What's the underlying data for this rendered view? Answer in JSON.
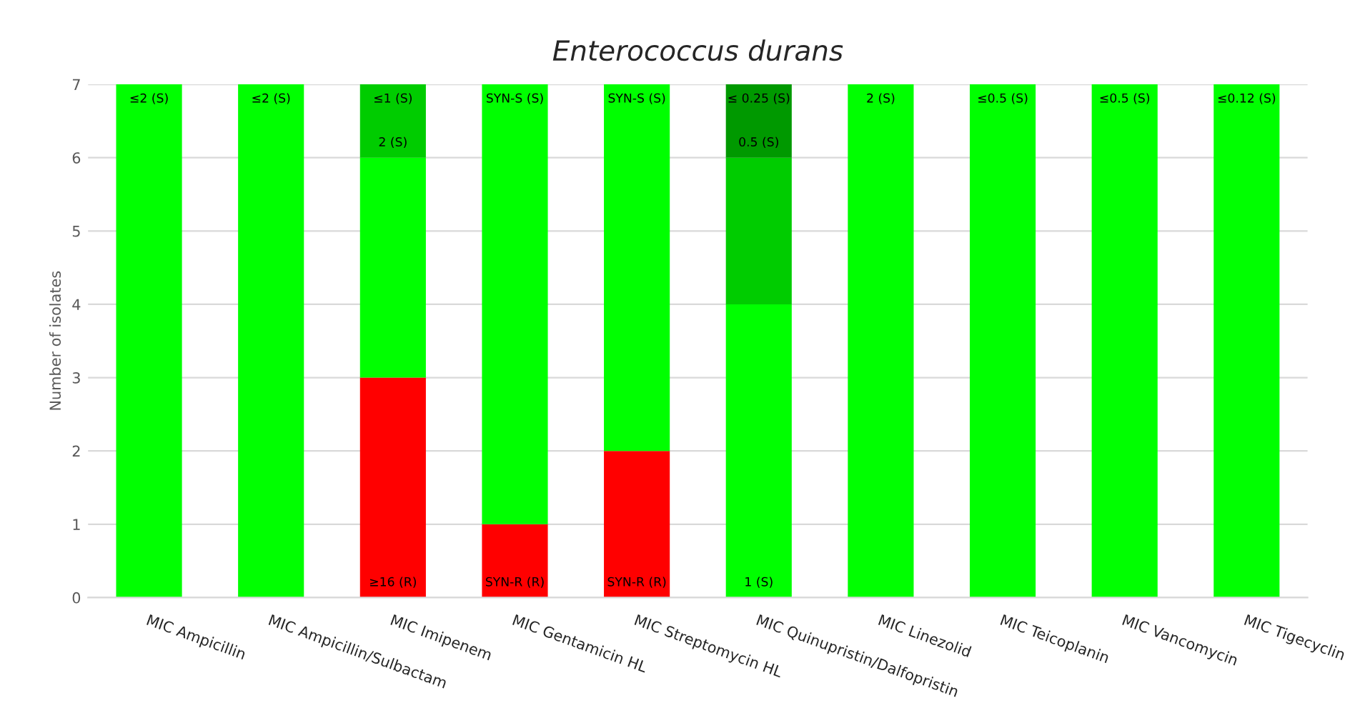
{
  "chart_data": {
    "type": "bar",
    "title": "Enterococcus durans",
    "ylabel": "Number of isolates",
    "stacked": true,
    "categories": [
      "MIC Ampicillin",
      "MIC Ampicillin/Sulbactam",
      "MIC Imipenem",
      "MIC Gentamicin HL",
      "MIC Streptomycin HL",
      "MIC Quinupristin/Dalfopristin",
      "MIC Linezolid",
      "MIC Teicoplanin",
      "MIC Vancomycin",
      "MIC Tigecyclin"
    ],
    "series": [
      {
        "values": [
          null,
          null,
          3,
          1,
          2,
          4,
          null,
          null,
          null,
          null
        ],
        "colors": [
          "#00ff00",
          "#00ff00",
          "#ff0000",
          "#ff0000",
          "#ff0000",
          "#00ff00",
          "#00ff00",
          "#00ff00",
          "#00ff00",
          "#00ff00"
        ]
      },
      {
        "values": [
          null,
          null,
          3,
          null,
          null,
          2,
          null,
          null,
          null,
          null
        ],
        "colors": [
          "#00ff00",
          "#00ff00",
          "#00ff00",
          "#00ff00",
          "#00ff00",
          "#00cc00",
          "#00ff00",
          "#00ff00",
          "#00ff00",
          "#00ff00"
        ]
      },
      {
        "values": [
          7,
          7,
          1,
          6,
          5,
          1,
          7,
          7,
          7,
          7
        ],
        "colors": [
          "#00ff00",
          "#00ff00",
          "#00cc00",
          "#00ff00",
          "#00ff00",
          "#009900",
          "#00ff00",
          "#00ff00",
          "#00ff00",
          "#00ff00"
        ]
      }
    ],
    "annotations": [
      {
        "text": "≤2 (S)",
        "x": "MIC Ampicillin",
        "y": 7
      },
      {
        "text": "≤2 (S)",
        "x": "MIC Ampicillin/Sulbactam",
        "y": 7
      },
      {
        "text": "≤1 (S)",
        "x": "MIC Imipenem",
        "y": 7
      },
      {
        "text": "2 (S)",
        "x": "MIC Imipenem",
        "y": 6
      },
      {
        "text": "≥16 (R)",
        "x": "MIC Imipenem",
        "y": 0
      },
      {
        "text": "SYN-S (S)",
        "x": "MIC Gentamicin HL",
        "y": 7
      },
      {
        "text": "SYN-R (R)",
        "x": "MIC Gentamicin HL",
        "y": 0
      },
      {
        "text": "SYN-S (S)",
        "x": "MIC Streptomycin HL",
        "y": 7
      },
      {
        "text": "SYN-R (R)",
        "x": "MIC Streptomycin HL",
        "y": 0
      },
      {
        "text": "≤ 0.25 (S)",
        "x": "MIC Quinupristin/Dalfopristin",
        "y": 7
      },
      {
        "text": "0.5 (S)",
        "x": "MIC Quinupristin/Dalfopristin",
        "y": 6
      },
      {
        "text": "1 (S)",
        "x": "MIC Quinupristin/Dalfopristin",
        "y": 0
      },
      {
        "text": "2 (S)",
        "x": "MIC Linezolid",
        "y": 7
      },
      {
        "text": "≤0.5 (S)",
        "x": "MIC Teicoplanin",
        "y": 7
      },
      {
        "text": "≤0.5 (S)",
        "x": "MIC Vancomycin",
        "y": 7
      },
      {
        "text": "≤0.12 (S)",
        "x": "MIC Tigecyclin",
        "y": 7
      }
    ],
    "ylim": [
      0,
      7
    ],
    "yticks": [
      0,
      1,
      2,
      3,
      4,
      5,
      6,
      7
    ],
    "grid": "y",
    "legend": false
  }
}
